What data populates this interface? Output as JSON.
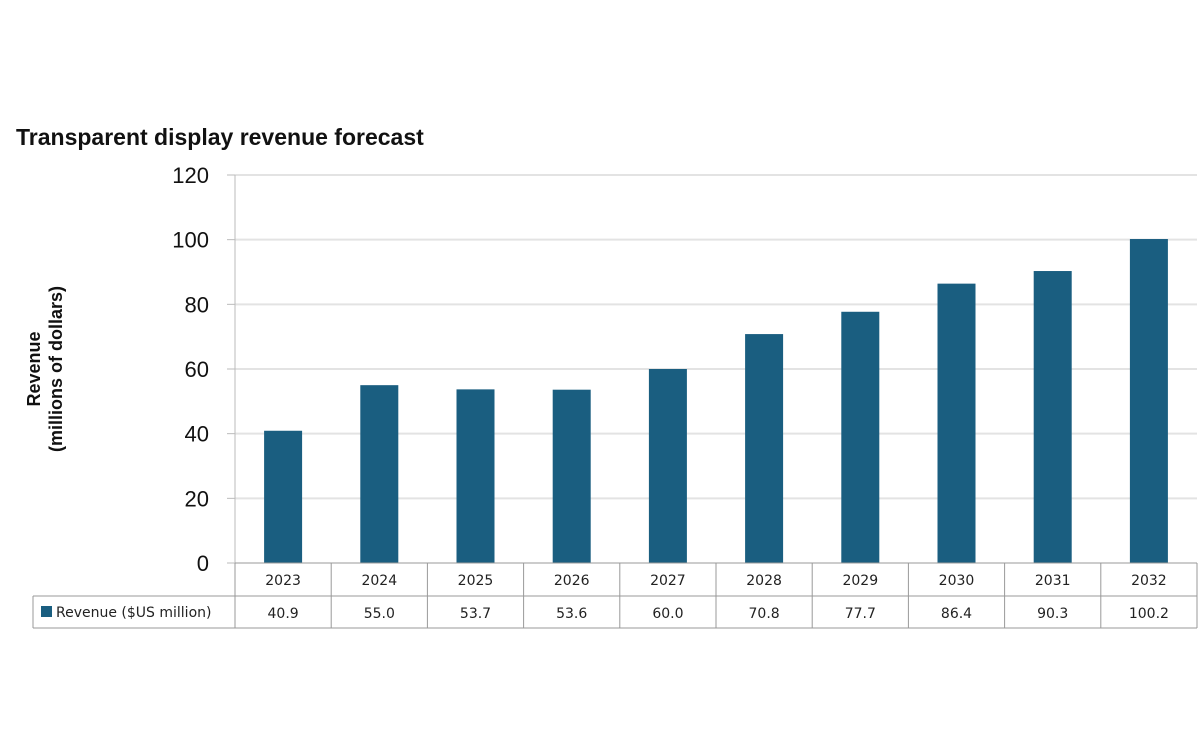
{
  "chart_data": {
    "type": "bar",
    "title": "Transparent display revenue forecast",
    "ylabel": [
      "Revenue",
      "(millions of dollars)"
    ],
    "xlabel": "",
    "categories": [
      "2023",
      "2024",
      "2025",
      "2026",
      "2027",
      "2028",
      "2029",
      "2030",
      "2031",
      "2032"
    ],
    "series": [
      {
        "name": "Revenue ($US million)",
        "values": [
          40.9,
          55.0,
          53.7,
          53.6,
          60.0,
          70.8,
          77.7,
          86.4,
          90.3,
          100.2
        ],
        "labels": [
          "40.9",
          "55.0",
          "53.7",
          "53.6",
          "60.0",
          "70.8",
          "77.7",
          "86.4",
          "90.3",
          "100.2"
        ],
        "color": "#1a5e80"
      }
    ],
    "ylim": [
      0,
      120
    ],
    "yticks": [
      0,
      20,
      40,
      60,
      80,
      100,
      120
    ],
    "grid": true,
    "legend": "data-table"
  }
}
